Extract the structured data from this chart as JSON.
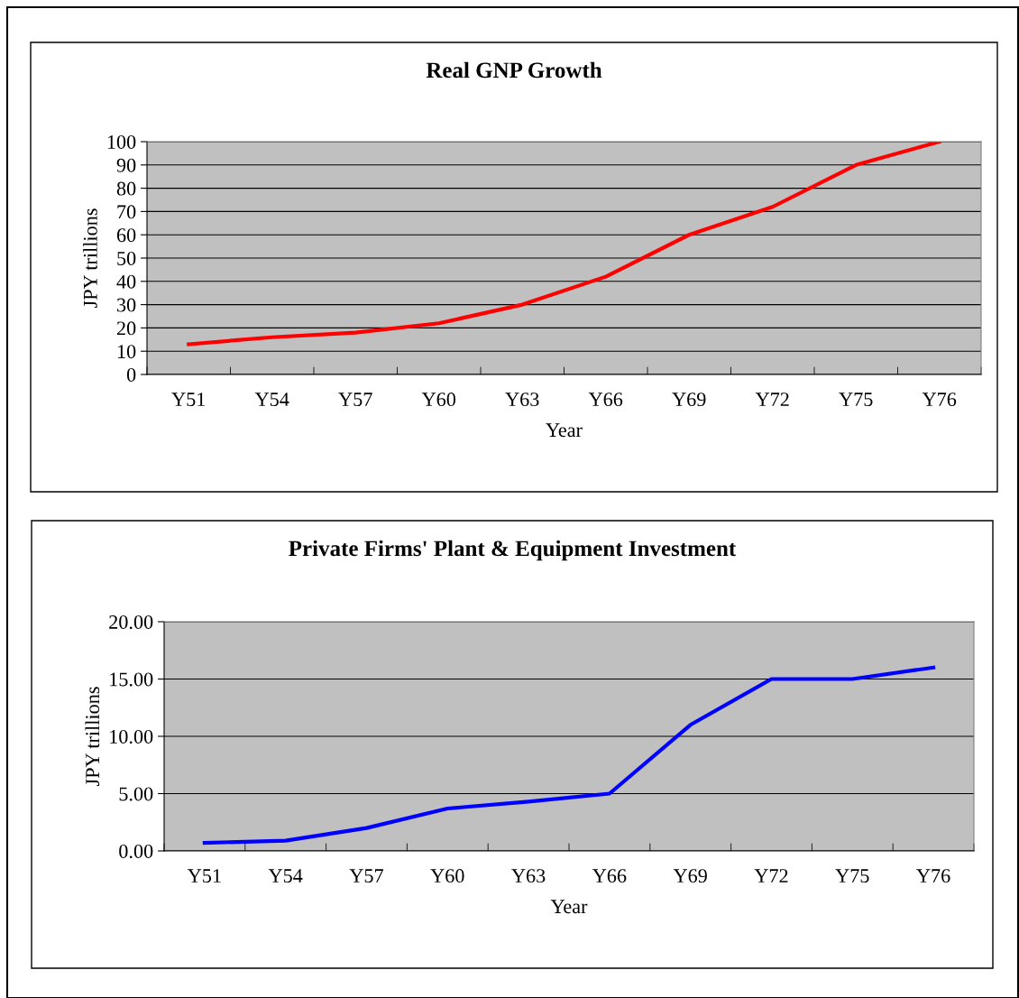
{
  "chart_data": [
    {
      "type": "line",
      "title": "Real GNP Growth",
      "xlabel": "Year",
      "ylabel": "JPY trillions",
      "categories": [
        "Y51",
        "Y54",
        "Y57",
        "Y60",
        "Y63",
        "Y66",
        "Y69",
        "Y72",
        "Y75",
        "Y76"
      ],
      "series": [
        {
          "color": "#ff0000",
          "values": [
            13,
            16,
            18,
            22,
            30,
            42,
            60,
            72,
            90,
            100
          ]
        }
      ],
      "ylim": [
        0,
        100
      ],
      "yticks": [
        0,
        10,
        20,
        30,
        40,
        50,
        60,
        70,
        80,
        90,
        100
      ],
      "grid": "y",
      "marker": "none",
      "line_style": "solid"
    },
    {
      "type": "line",
      "title": "Private Firms' Plant & Equipment Investment",
      "xlabel": "Year",
      "ylabel": "JPY trillions",
      "categories": [
        "Y51",
        "Y54",
        "Y57",
        "Y60",
        "Y63",
        "Y66",
        "Y69",
        "Y72",
        "Y75",
        "Y76"
      ],
      "series": [
        {
          "color": "#0000ff",
          "values": [
            0.7,
            0.9,
            2.0,
            3.7,
            4.3,
            5.0,
            11,
            15,
            15,
            16
          ]
        }
      ],
      "ylim": [
        0,
        20
      ],
      "yticks": [
        {
          "value": 0,
          "label": "0.00"
        },
        {
          "value": 5,
          "label": "5.00"
        },
        {
          "value": 10,
          "label": "10.00"
        },
        {
          "value": 15,
          "label": "15.00"
        },
        {
          "value": 20,
          "label": "20.00"
        }
      ],
      "grid": "y",
      "marker": "none",
      "line_style": "solid"
    }
  ]
}
